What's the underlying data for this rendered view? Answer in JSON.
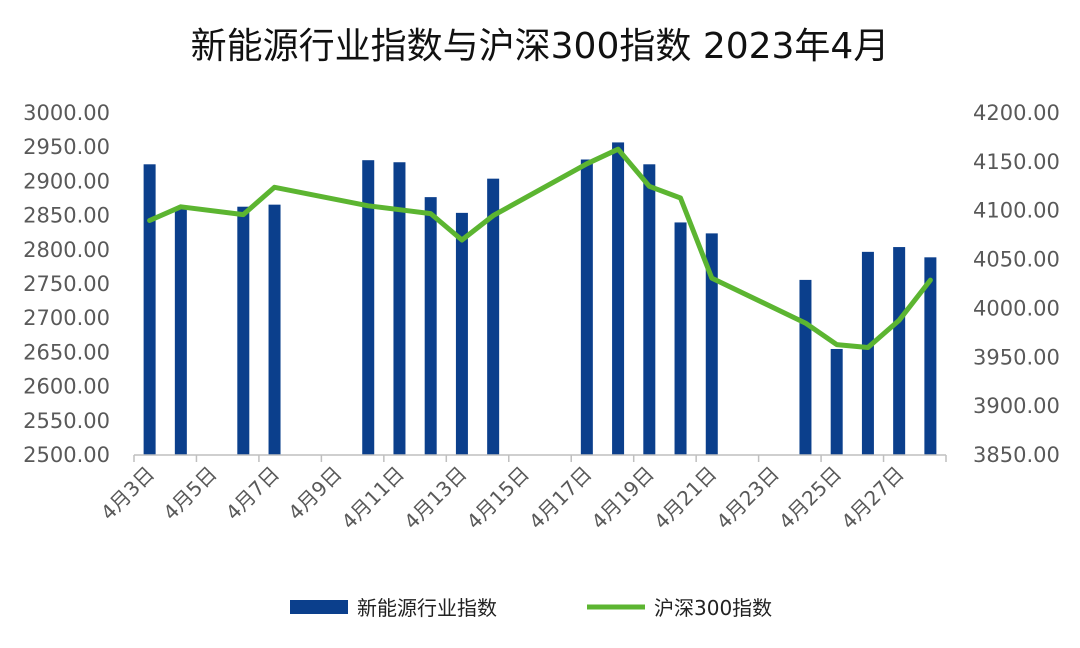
{
  "chart_data": {
    "type": "bar+line",
    "title": "新能源行业指数与沪深300指数 2023年4月",
    "categories": [
      "4月3日",
      "4月4日",
      "4月5日",
      "4月6日",
      "4月7日",
      "4月8日",
      "4月9日",
      "4月10日",
      "4月11日",
      "4月12日",
      "4月13日",
      "4月14日",
      "4月15日",
      "4月16日",
      "4月17日",
      "4月18日",
      "4月19日",
      "4月20日",
      "4月21日",
      "4月22日",
      "4月23日",
      "4月24日",
      "4月25日",
      "4月26日",
      "4月27日",
      "4月28日"
    ],
    "x_tick_labels": [
      "4月3日",
      "4月5日",
      "4月7日",
      "4月9日",
      "4月11日",
      "4月13日",
      "4月15日",
      "4月17日",
      "4月19日",
      "4月21日",
      "4月23日",
      "4月25日",
      "4月27日"
    ],
    "series": [
      {
        "name": "新能源行业指数",
        "type": "bar",
        "axis": "left",
        "color": "#0b3f8c",
        "values": [
          2925,
          2860,
          null,
          2863,
          2866,
          null,
          null,
          2931,
          2928,
          2877,
          2854,
          2904,
          null,
          null,
          2932,
          2957,
          2925,
          2840,
          2824,
          null,
          null,
          2756,
          2655,
          2797,
          2804,
          2789
        ]
      },
      {
        "name": "沪深300指数",
        "type": "line",
        "axis": "right",
        "color": "#5cb531",
        "values": [
          4090,
          4104,
          null,
          4096,
          4124,
          null,
          null,
          4105,
          4101,
          4097,
          4070,
          4095,
          null,
          null,
          4148,
          4163,
          4125,
          4113,
          4031,
          null,
          null,
          3985,
          3963,
          3960,
          3988,
          4029
        ]
      }
    ],
    "y_left": {
      "min": 2500,
      "max": 3000,
      "ticks": [
        "3000.00",
        "2950.00",
        "2900.00",
        "2850.00",
        "2800.00",
        "2750.00",
        "2700.00",
        "2650.00",
        "2600.00",
        "2550.00",
        "2500.00"
      ]
    },
    "y_right": {
      "min": 3850,
      "max": 4200,
      "ticks": [
        "4200.00",
        "4150.00",
        "4100.00",
        "4050.00",
        "4000.00",
        "3950.00",
        "3900.00",
        "3850.00"
      ]
    },
    "legend": {
      "position": "bottom",
      "items": [
        {
          "label": "新能源行业指数",
          "color": "#0b3f8c"
        },
        {
          "label": "沪深300指数",
          "color": "#5cb531"
        }
      ]
    },
    "grid": false
  }
}
